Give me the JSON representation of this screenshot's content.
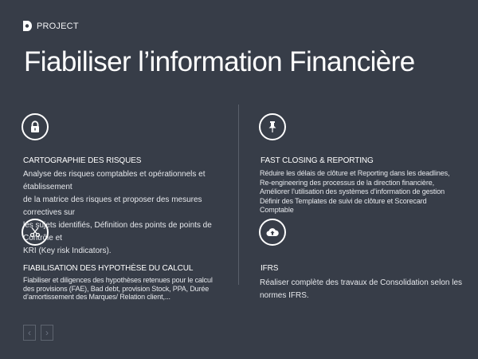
{
  "header": {
    "label": "PROJECT"
  },
  "title": "Fiabiliser l’information Financière",
  "cards": [
    {
      "icon": "lock-icon",
      "title": "CARTOGRAPHIE DES RISQUES",
      "lines": [
        "Analyse des risques comptables et opérationnels et établissement",
        "de la matrice des risques et proposer des mesures correctives sur",
        "les sujets identifiés, Définition des points de points de Contrôle et",
        "KRI (Key risk Indicators)."
      ]
    },
    {
      "icon": "pushpin-icon",
      "title": "FAST CLOSING & REPORTING",
      "lines": [
        "Réduire les délais de clôture et Reporting dans les deadlines,",
        "Re-engineering des processus de la direction financière,",
        "Améliorer l’utilisation des systèmes d’information de gestion",
        "Définir des Templates de suivi de clôture et Scorecard Comptable"
      ]
    },
    {
      "icon": "scissors-icon",
      "title": "FIABILISATION DES HYPOTHÈSE DU CALCUL",
      "lines": [
        "Fiabiliser et diligences des hypothèses retenues pour le calcul",
        "des provisions (FAE), Bad debt, provision Stock, PPA, Durée",
        "d’amortissement des Marques/ Relation client,..."
      ]
    },
    {
      "icon": "cloud-upload-icon",
      "title": "IFRS",
      "lines": [
        "Réaliser complète des travaux de Consolidation selon les",
        "normes IFRS."
      ]
    }
  ],
  "nav": {
    "prev": "‹",
    "next": "›"
  }
}
